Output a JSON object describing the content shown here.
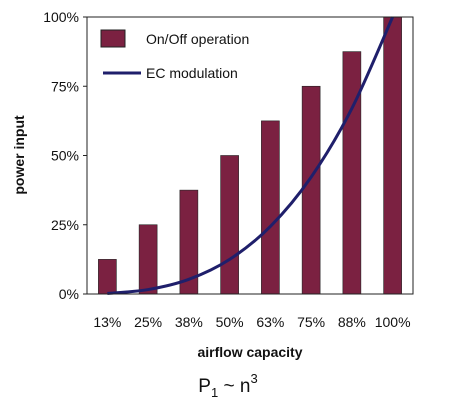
{
  "chart_data": {
    "type": "bar",
    "xlabel": "airflow capacity",
    "ylabel": "power input",
    "categories": [
      "13%",
      "25%",
      "38%",
      "50%",
      "63%",
      "75%",
      "88%",
      "100%"
    ],
    "ylim": [
      0,
      100
    ],
    "yticks": [
      "0%",
      "25%",
      "50%",
      "75%",
      "100%"
    ],
    "grid": false,
    "legend_position": "top-left",
    "series": [
      {
        "name": "On/Off operation",
        "kind": "bar",
        "color": "#7b2141",
        "values": [
          12.5,
          25,
          37.5,
          50,
          62.5,
          75,
          87.5,
          100
        ]
      },
      {
        "name": "EC modulation",
        "kind": "line",
        "color": "#1f1f6b",
        "values": [
          0.2,
          1.6,
          5.3,
          12.5,
          24.4,
          42.2,
          67,
          100
        ]
      }
    ],
    "annotation": {
      "base": "P",
      "subscript": "1",
      "rest": " ~ n",
      "superscript": "3"
    }
  }
}
